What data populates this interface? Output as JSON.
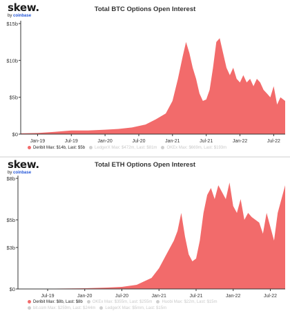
{
  "brand": {
    "name": "skew.",
    "by": "by",
    "parent": "coinbase"
  },
  "colors": {
    "series": "#f26b6b",
    "muted_dot": "#cfcfcf",
    "axis": "#333333",
    "grid": "#f0f0f0"
  },
  "chart_data": [
    {
      "type": "area",
      "title": "Total BTC Options Open Interest",
      "ylim": [
        0,
        15
      ],
      "yticks": [
        0,
        5,
        10,
        15
      ],
      "ytick_labels": [
        "$0",
        "$5b",
        "$10b",
        "$15b"
      ],
      "xlim": [
        2018.75,
        2022.67
      ],
      "xticks": [
        2019.0,
        2019.5,
        2020.0,
        2020.5,
        2021.0,
        2021.5,
        2022.0,
        2022.5
      ],
      "xtick_labels": [
        "Jan-19",
        "Jul-19",
        "Jan-20",
        "Jul-20",
        "Jan-21",
        "Jul-21",
        "Jan-22",
        "Jul-22"
      ],
      "grid": false,
      "legend": [
        {
          "label": "Deribit Max: $14b, Last: $5b",
          "active": true
        },
        {
          "label": "LedgerX Max: $472m, Last: $81m",
          "active": false
        },
        {
          "label": "OKEx Max: $669m, Last: $193m",
          "active": false
        }
      ],
      "series": [
        {
          "name": "Deribit",
          "x": [
            2018.75,
            2019.0,
            2019.25,
            2019.5,
            2019.75,
            2020.0,
            2020.2,
            2020.4,
            2020.6,
            2020.75,
            2020.9,
            2021.0,
            2021.08,
            2021.15,
            2021.2,
            2021.25,
            2021.3,
            2021.35,
            2021.4,
            2021.45,
            2021.5,
            2021.55,
            2021.6,
            2021.65,
            2021.7,
            2021.75,
            2021.8,
            2021.85,
            2021.9,
            2021.95,
            2022.0,
            2022.05,
            2022.1,
            2022.15,
            2022.2,
            2022.25,
            2022.3,
            2022.35,
            2022.4,
            2022.45,
            2022.5,
            2022.55,
            2022.6,
            2022.67
          ],
          "values": [
            0.1,
            0.15,
            0.3,
            0.5,
            0.5,
            0.6,
            0.7,
            0.9,
            1.3,
            2.0,
            2.8,
            4.5,
            7.5,
            10.5,
            12.5,
            11.0,
            9.0,
            7.5,
            5.5,
            4.5,
            4.7,
            6.0,
            9.0,
            12.5,
            13.0,
            11.0,
            9.0,
            8.0,
            9.0,
            7.5,
            7.0,
            8.0,
            7.0,
            7.5,
            6.5,
            7.5,
            7.0,
            6.0,
            5.5,
            5.0,
            6.5,
            4.0,
            5.0,
            4.5
          ]
        }
      ]
    },
    {
      "type": "area",
      "title": "Total ETH Options Open Interest",
      "ylim": [
        0,
        8
      ],
      "yticks": [
        0,
        3,
        5,
        8
      ],
      "ytick_labels": [
        "$0",
        "$3b",
        "$5b",
        "$8b"
      ],
      "xlim": [
        2019.1,
        2022.7
      ],
      "xticks": [
        2019.5,
        2020.0,
        2020.5,
        2021.0,
        2021.5,
        2022.0,
        2022.5
      ],
      "xtick_labels": [
        "Jul-19",
        "Jan-20",
        "Jul-20",
        "Jan-21",
        "Jul-21",
        "Jan-22",
        "Jul-22"
      ],
      "grid": false,
      "legend": [
        {
          "label": "Deribit Max: $8b, Last: $8b",
          "active": true
        },
        {
          "label": "OKEx Max: $355m, Last: $255m",
          "active": false
        },
        {
          "label": "Huobi Max: $22m, Last: $15m",
          "active": false
        },
        {
          "label": "bit.com Max: $259m, Last: $244m",
          "active": false
        },
        {
          "label": "LedgerX Max: $5mm, Last: $15m",
          "active": false
        }
      ],
      "series": [
        {
          "name": "Deribit",
          "x": [
            2019.1,
            2019.5,
            2020.0,
            2020.3,
            2020.5,
            2020.7,
            2020.9,
            2021.0,
            2021.1,
            2021.2,
            2021.25,
            2021.3,
            2021.35,
            2021.4,
            2021.45,
            2021.5,
            2021.55,
            2021.6,
            2021.65,
            2021.7,
            2021.75,
            2021.8,
            2021.85,
            2021.9,
            2021.95,
            2022.0,
            2022.05,
            2022.1,
            2022.15,
            2022.2,
            2022.25,
            2022.3,
            2022.35,
            2022.4,
            2022.45,
            2022.5,
            2022.55,
            2022.6,
            2022.65,
            2022.7
          ],
          "values": [
            0.01,
            0.02,
            0.05,
            0.1,
            0.15,
            0.3,
            0.8,
            1.5,
            2.5,
            3.5,
            4.2,
            5.5,
            3.8,
            2.5,
            2.0,
            2.2,
            3.5,
            5.5,
            6.8,
            7.3,
            6.5,
            7.5,
            7.0,
            6.5,
            7.7,
            6.0,
            5.5,
            6.5,
            5.0,
            5.5,
            5.2,
            5.0,
            4.8,
            4.0,
            5.5,
            4.5,
            3.5,
            5.5,
            6.5,
            7.5
          ]
        }
      ]
    }
  ]
}
